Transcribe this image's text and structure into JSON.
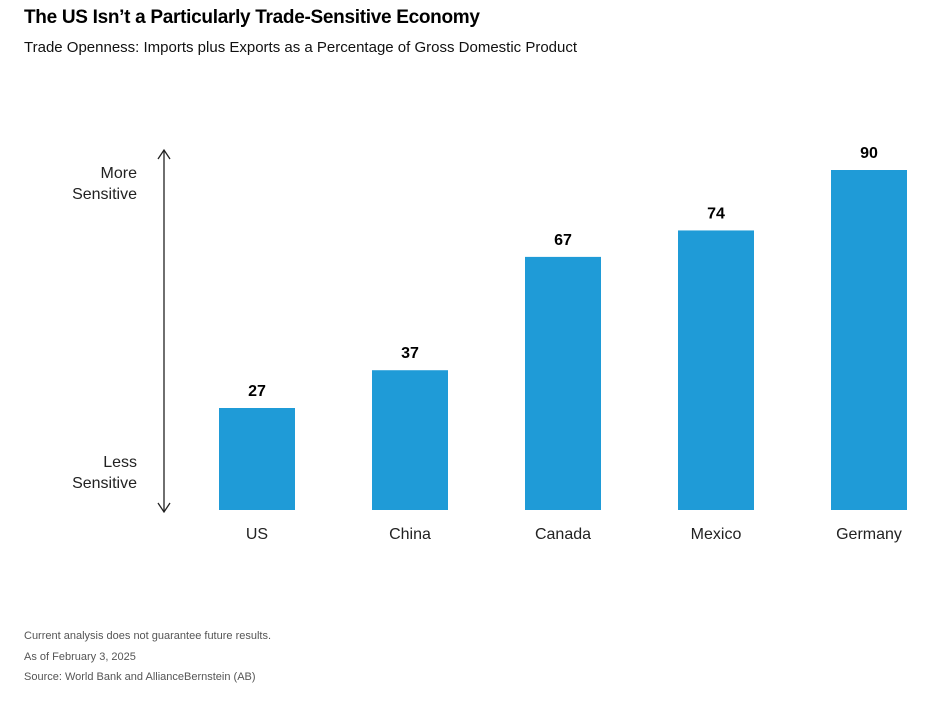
{
  "title": "The US Isn’t a Particularly Trade-Sensitive Economy",
  "subtitle": "Trade Openness: Imports plus Exports as a Percentage of Gross Domestic Product",
  "axis": {
    "top_label_line1": "More",
    "top_label_line2": "Sensitive",
    "bottom_label_line1": "Less",
    "bottom_label_line2": "Sensitive"
  },
  "footer": {
    "disclaimer": "Current analysis does not guarantee future results.",
    "date": "As of February 3, 2025",
    "source": "Source: World Bank and AllianceBernstein (AB)"
  },
  "colors": {
    "bar": "#1f9bd7",
    "text": "#111111",
    "arrow": "#222222"
  },
  "chart_data": {
    "type": "bar",
    "categories": [
      "US",
      "China",
      "Canada",
      "Mexico",
      "Germany"
    ],
    "values": [
      27,
      37,
      67,
      74,
      90
    ],
    "title": "The US Isn’t a Particularly Trade-Sensitive Economy",
    "subtitle": "Trade Openness: Imports plus Exports as a Percentage of Gross Domestic Product",
    "xlabel": "",
    "ylabel": "",
    "ylim": [
      0,
      90
    ],
    "grid": false,
    "legend": "none"
  }
}
